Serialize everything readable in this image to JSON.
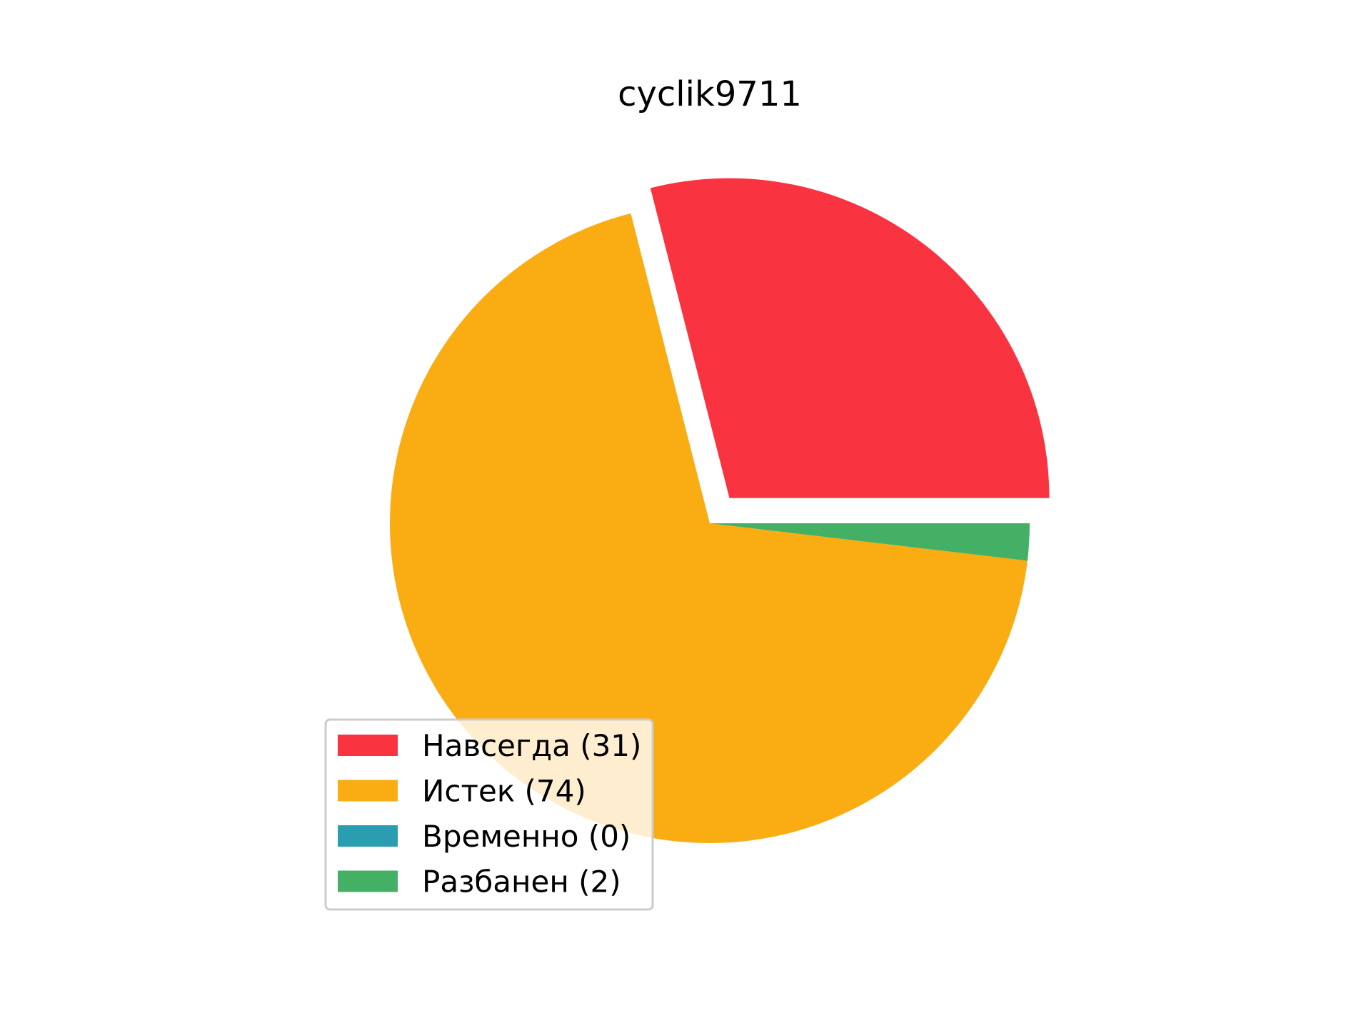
{
  "chart_data": {
    "type": "pie",
    "title": "cyclik9711",
    "slices": [
      {
        "label": "Навсегда (31)",
        "value": 31,
        "color": "#F9333F",
        "exploded": true
      },
      {
        "label": "Истек (74)",
        "value": 74,
        "color": "#FAAC13",
        "exploded": false
      },
      {
        "label": "Временно (0)",
        "value": 0,
        "color": "#2A9DB0",
        "exploded": false
      },
      {
        "label": "Разбанен (2)",
        "value": 2,
        "color": "#43B065",
        "exploded": false
      }
    ],
    "start_angle": 0,
    "direction": "counterclockwise",
    "legend_position": "lower-left"
  }
}
